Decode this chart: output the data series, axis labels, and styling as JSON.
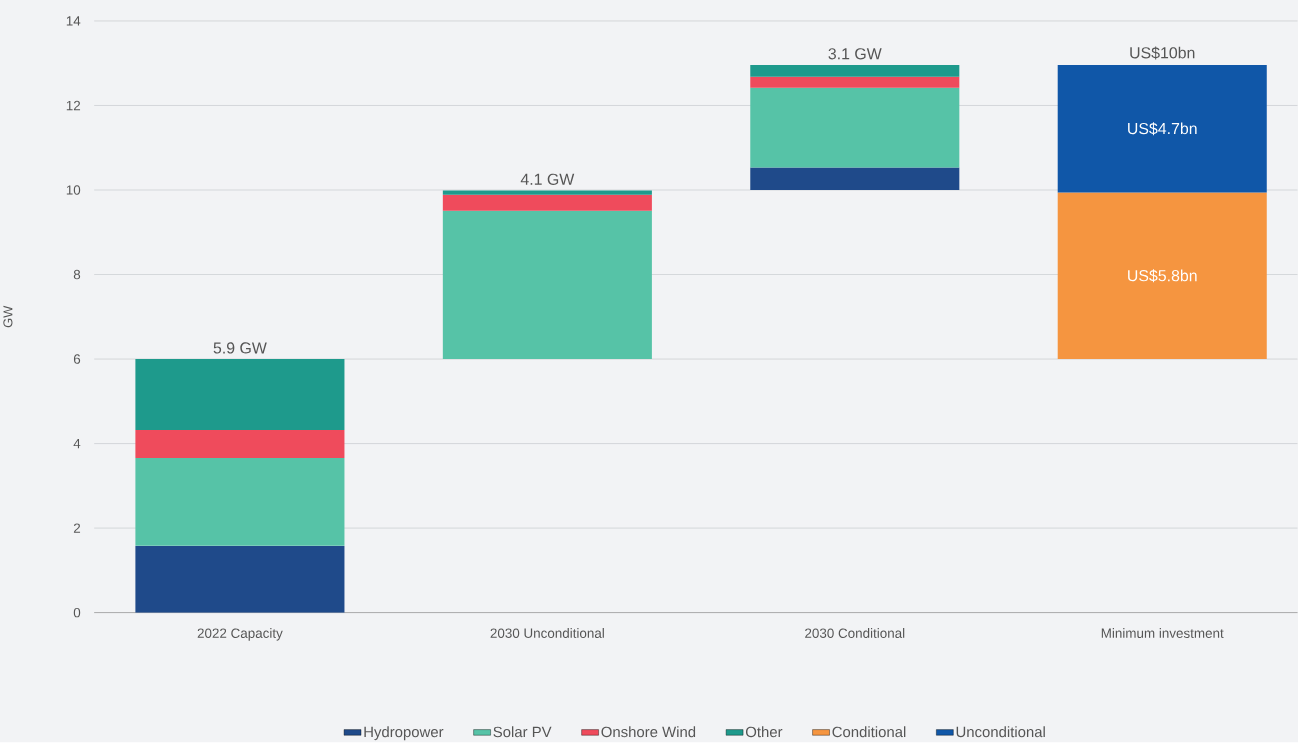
{
  "chart_data": {
    "type": "bar",
    "ylabel": "GW",
    "categories": [
      "2022 Capacity",
      "2030 Unconditional",
      "2030 Conditional",
      "Minimum investment"
    ],
    "series": [
      {
        "name": "Hydropower",
        "color": "#1f4a8a",
        "values": [
          1.58,
          null,
          0.53,
          null
        ],
        "base": [
          0,
          null,
          10,
          null
        ]
      },
      {
        "name": "Solar PV",
        "color": "#56c3a7",
        "values": [
          2.08,
          3.51,
          1.89,
          null
        ],
        "base": [
          1.58,
          6,
          10.53,
          null
        ]
      },
      {
        "name": "Onshore Wind",
        "color": "#ef4b5c",
        "values": [
          0.66,
          0.38,
          0.26,
          null
        ],
        "base": [
          3.66,
          9.51,
          12.42,
          null
        ]
      },
      {
        "name": "Other",
        "color": "#1e9a8c",
        "values": [
          1.68,
          0.1,
          0.28,
          null
        ],
        "base": [
          4.32,
          9.89,
          12.68,
          null
        ]
      },
      {
        "name": "Conditional",
        "color": "#f59540",
        "values": [
          null,
          null,
          null,
          3.94
        ],
        "base": [
          null,
          null,
          null,
          6
        ],
        "value_labels": [
          null,
          null,
          null,
          "US$5.8bn"
        ]
      },
      {
        "name": "Unconditional",
        "color": "#1057a8",
        "values": [
          null,
          null,
          null,
          3.02
        ],
        "base": [
          null,
          null,
          null,
          9.94
        ],
        "value_labels": [
          null,
          null,
          null,
          "US$4.7bn"
        ]
      }
    ],
    "totals": [
      "5.9 GW",
      "4.1 GW",
      "3.1 GW",
      "US$10bn"
    ],
    "ylim": [
      0,
      14
    ],
    "yticks": [
      0,
      2,
      4,
      6,
      8,
      10,
      12,
      14
    ],
    "grid": "y",
    "legend": "bottom"
  }
}
